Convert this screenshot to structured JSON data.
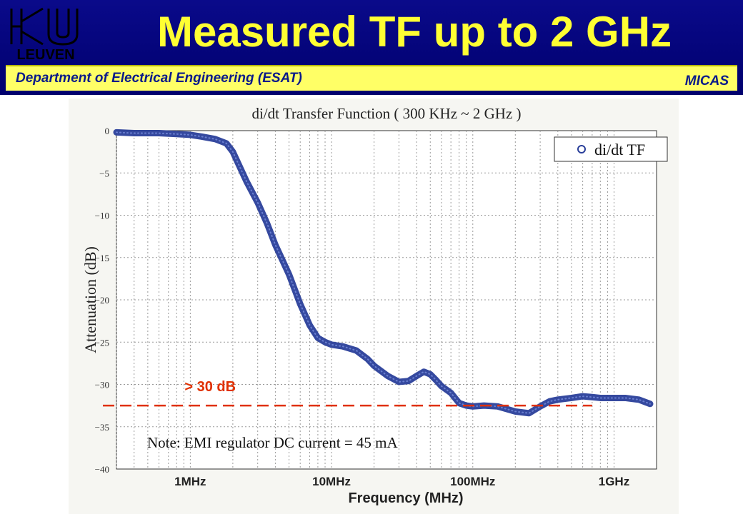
{
  "header": {
    "title": "Measured TF up to 2 GHz",
    "logo_text": "LEUVEN",
    "department": "Department of Electrical Engineering (ESAT)",
    "group": "MICAS"
  },
  "colors": {
    "header_bg": "#00007a",
    "title": "#ffff33",
    "subbar": "#ffff66",
    "series": "#2a3f9a",
    "annotation": "#e03000"
  },
  "chart_data": {
    "type": "line",
    "title": "di/dt  Transfer  Function ( 300 KHz ~ 2 GHz )",
    "xlabel": "Frequency (MHz)",
    "ylabel": "Attenuation (dB)",
    "x_scale": "log",
    "xlim": [
      0.3,
      2000
    ],
    "ylim": [
      -40,
      0
    ],
    "yticks": [
      0,
      -5,
      -10,
      -15,
      -20,
      -25,
      -30,
      -35,
      -40
    ],
    "ytick_labels": [
      "0",
      "−5",
      "−10",
      "−15",
      "−20",
      "−25",
      "−30",
      "−35",
      "−40"
    ],
    "xticks": [
      1,
      10,
      100,
      1000
    ],
    "xtick_labels": [
      "1MHz",
      "10MHz",
      "100MHz",
      "1GHz"
    ],
    "grid": true,
    "legend": {
      "position": "top-right",
      "entries": [
        "di/dt TF"
      ]
    },
    "series": [
      {
        "name": "di/dt TF",
        "x": [
          0.3,
          0.4,
          0.5,
          0.6,
          0.8,
          1.0,
          1.2,
          1.5,
          1.8,
          2.0,
          2.2,
          2.5,
          3.0,
          3.5,
          4.0,
          5.0,
          6.0,
          7.0,
          8.0,
          9.0,
          10,
          12,
          15,
          18,
          20,
          25,
          30,
          35,
          40,
          45,
          50,
          55,
          60,
          70,
          80,
          90,
          100,
          120,
          150,
          200,
          250,
          300,
          350,
          400,
          500,
          600,
          700,
          800,
          1000,
          1200,
          1500,
          1800
        ],
        "y": [
          -0.2,
          -0.3,
          -0.3,
          -0.3,
          -0.4,
          -0.5,
          -0.7,
          -1.0,
          -1.5,
          -2.5,
          -4.0,
          -6.0,
          -8.5,
          -11.0,
          -13.5,
          -17.0,
          -20.5,
          -23.0,
          -24.5,
          -25.0,
          -25.3,
          -25.5,
          -26.0,
          -27.0,
          -27.8,
          -29.0,
          -29.7,
          -29.6,
          -29.0,
          -28.5,
          -28.8,
          -29.5,
          -30.2,
          -31.0,
          -32.2,
          -32.5,
          -32.6,
          -32.5,
          -32.6,
          -33.2,
          -33.4,
          -32.6,
          -32.0,
          -31.8,
          -31.6,
          -31.4,
          -31.5,
          -31.6,
          -31.6,
          -31.6,
          -31.8,
          -32.3
        ]
      }
    ],
    "annotations": [
      {
        "text": "> 30 dB",
        "y": -32.5,
        "style": "dashed-red-line"
      },
      {
        "text": "Note: EMI regulator DC current = 45 mA"
      }
    ]
  }
}
